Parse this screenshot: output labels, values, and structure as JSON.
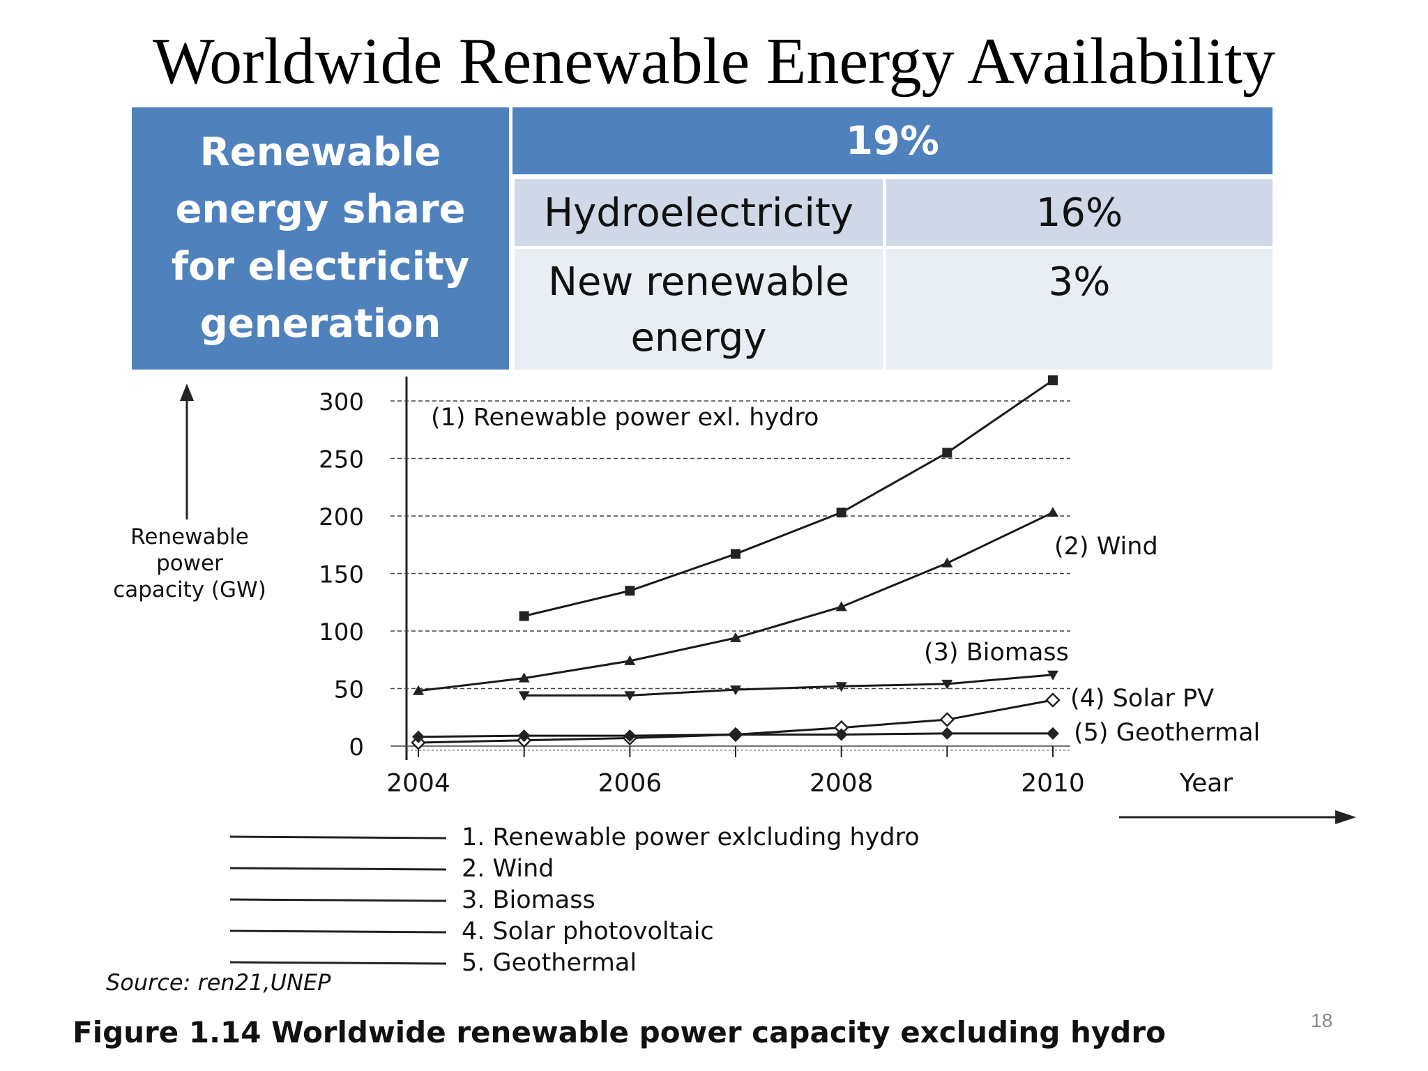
{
  "slide": {
    "title": "Worldwide Renewable Energy Availability",
    "page_number": "18"
  },
  "share_table": {
    "header_label": "Renewable energy share  for electricity generation",
    "header_value": "19%",
    "rows": [
      {
        "label": "Hydroelectricity",
        "value": "16%"
      },
      {
        "label": "New renewable energy",
        "value": "3%"
      }
    ],
    "colors": {
      "header": "#4f81bd",
      "row1": "#d0d8e8",
      "row2": "#e9edf4"
    }
  },
  "chart_data": {
    "type": "line",
    "ylabel": "Renewable power capacity (GW)",
    "xlabel": "Year",
    "ylim": [
      0,
      300
    ],
    "xlim": [
      2004,
      2010
    ],
    "yticks": [
      0,
      50,
      100,
      150,
      200,
      250,
      300
    ],
    "xticks": [
      2004,
      2006,
      2008,
      2010
    ],
    "grid": "horizontal dashed",
    "series": [
      {
        "name": "(1) Renewable power exl. hydro",
        "marker": "square",
        "x": [
          2005,
          2006,
          2007,
          2008,
          2009,
          2010
        ],
        "values": [
          113,
          135,
          167,
          203,
          255,
          318
        ]
      },
      {
        "name": "(2) Wind",
        "marker": "triangle-up",
        "x": [
          2004,
          2005,
          2006,
          2007,
          2008,
          2009,
          2010
        ],
        "values": [
          48,
          59,
          74,
          94,
          121,
          159,
          203
        ]
      },
      {
        "name": "(3) Biomass",
        "marker": "triangle-down",
        "x": [
          2005,
          2006,
          2007,
          2008,
          2009,
          2010
        ],
        "values": [
          44,
          44,
          49,
          52,
          54,
          62
        ]
      },
      {
        "name": "(4) Solar PV",
        "marker": "diamond",
        "x": [
          2004,
          2005,
          2006,
          2007,
          2008,
          2009,
          2010
        ],
        "values": [
          3,
          5,
          7,
          10,
          16,
          23,
          40
        ]
      },
      {
        "name": "(5) Geothermal",
        "marker": "diamond-filled",
        "x": [
          2004,
          2005,
          2006,
          2007,
          2008,
          2009,
          2010
        ],
        "values": [
          8,
          9,
          9,
          10,
          10,
          11,
          11
        ]
      }
    ],
    "legend": [
      "1. Renewable power exlcluding hydro",
      "2. Wind",
      "3. Biomass",
      "4. Solar photovoltaic",
      "5. Geothermal"
    ],
    "source": "Source: ren21,UNEP",
    "caption": "Figure 1.14  Worldwide renewable power capacity excluding hydro"
  }
}
